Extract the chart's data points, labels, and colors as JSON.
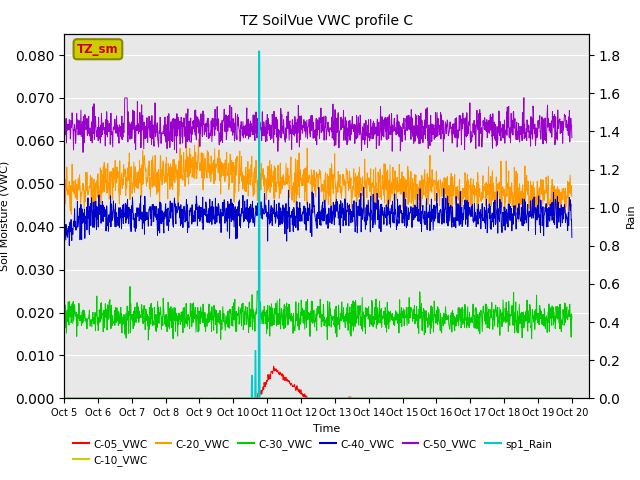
{
  "title": "TZ SoilVue VWC profile C",
  "xlabel": "Time",
  "ylabel_left": "Soil Moisture (VWC)",
  "ylabel_right": "Rain",
  "xlim_days": [
    0,
    15.5
  ],
  "ylim_left": [
    0.0,
    0.085
  ],
  "ylim_right": [
    0.0,
    1.9125
  ],
  "yticks_left": [
    0.0,
    0.01,
    0.02,
    0.03,
    0.04,
    0.05,
    0.06,
    0.07,
    0.08
  ],
  "yticks_right": [
    0.0,
    0.2,
    0.4,
    0.6,
    0.8,
    1.0,
    1.2,
    1.4,
    1.6,
    1.8
  ],
  "xtick_labels": [
    "Oct 5",
    "Oct 6",
    "Oct 7",
    "Oct 8",
    "Oct 9",
    "Oct 10",
    "Oct 11",
    "Oct 12",
    "Oct 13",
    "Oct 14",
    "Oct 15",
    "Oct 16",
    "Oct 17",
    "Oct 18",
    "Oct 19",
    "Oct 20"
  ],
  "bg_color": "#e8e8e8",
  "legend_box_color": "#cccc00",
  "legend_box_edge_color": "#888800",
  "legend_box_text": "TZ_sm",
  "legend_box_text_color": "#cc0000",
  "series": {
    "C05": {
      "label": "C-05_VWC",
      "color": "#ff0000"
    },
    "C10": {
      "label": "C-10_VWC",
      "color": "#cccc00"
    },
    "C20": {
      "label": "C-20_VWC",
      "color": "#ff9900"
    },
    "C30": {
      "label": "C-30_VWC",
      "color": "#00cc00"
    },
    "C40": {
      "label": "C-40_VWC",
      "color": "#0000cc"
    },
    "C50": {
      "label": "C-50_VWC",
      "color": "#9900cc"
    },
    "Rain": {
      "label": "sp1_Rain",
      "color": "#00cccc"
    }
  }
}
